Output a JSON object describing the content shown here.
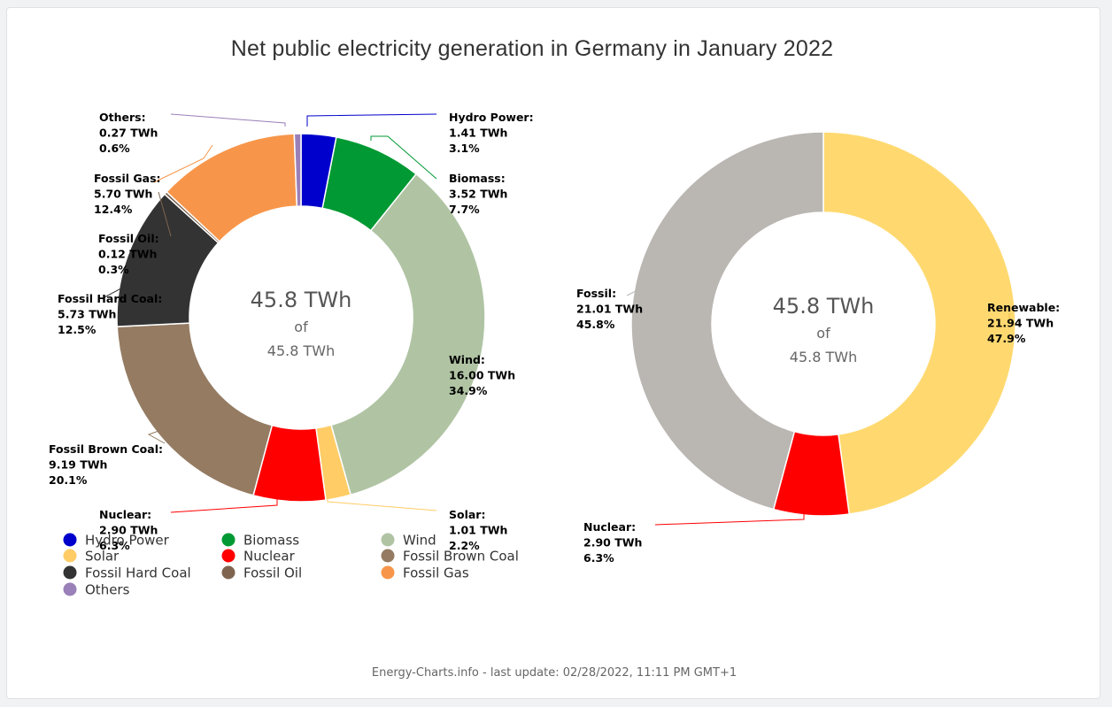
{
  "title": "Net public electricity generation in Germany in January 2022",
  "footer": "Energy-Charts.info - last update: 02/28/2022, 11:11 PM GMT+1",
  "chart_data": [
    {
      "type": "pie",
      "variant": "donut",
      "center": {
        "value": "45.8 TWh",
        "of": "of",
        "total": "45.8 TWh"
      },
      "unit": "TWh",
      "slices": [
        {
          "name": "Hydro Power",
          "value": 1.41,
          "value_label": "1.41 TWh",
          "percent": 3.1,
          "percent_label": "3.1%",
          "color": "#0000cc"
        },
        {
          "name": "Biomass",
          "value": 3.52,
          "value_label": "3.52 TWh",
          "percent": 7.7,
          "percent_label": "7.7%",
          "color": "#009933"
        },
        {
          "name": "Wind",
          "value": 16.0,
          "value_label": "16.00 TWh",
          "percent": 34.9,
          "percent_label": "34.9%",
          "color": "#b0c4a4"
        },
        {
          "name": "Solar",
          "value": 1.01,
          "value_label": "1.01 TWh",
          "percent": 2.2,
          "percent_label": "2.2%",
          "color": "#ffcc66"
        },
        {
          "name": "Nuclear",
          "value": 2.9,
          "value_label": "2.90 TWh",
          "percent": 6.3,
          "percent_label": "6.3%",
          "color": "#ff0000"
        },
        {
          "name": "Fossil Brown Coal",
          "value": 9.19,
          "value_label": "9.19 TWh",
          "percent": 20.1,
          "percent_label": "20.1%",
          "color": "#947b62"
        },
        {
          "name": "Fossil Hard Coal",
          "value": 5.73,
          "value_label": "5.73 TWh",
          "percent": 12.5,
          "percent_label": "12.5%",
          "color": "#333333"
        },
        {
          "name": "Fossil Oil",
          "value": 0.12,
          "value_label": "0.12 TWh",
          "percent": 0.3,
          "percent_label": "0.3%",
          "color": "#7f6550"
        },
        {
          "name": "Fossil Gas",
          "value": 5.7,
          "value_label": "5.70 TWh",
          "percent": 12.4,
          "percent_label": "12.4%",
          "color": "#f7964a"
        },
        {
          "name": "Others",
          "value": 0.27,
          "value_label": "0.27 TWh",
          "percent": 0.6,
          "percent_label": "0.6%",
          "color": "#9a80b8"
        }
      ],
      "legend": [
        "Hydro Power",
        "Biomass",
        "Wind",
        "Solar",
        "Nuclear",
        "Fossil Brown Coal",
        "Fossil Hard Coal",
        "Fossil Oil",
        "Fossil Gas",
        "Others"
      ]
    },
    {
      "type": "pie",
      "variant": "donut",
      "center": {
        "value": "45.8 TWh",
        "of": "of",
        "total": "45.8 TWh"
      },
      "unit": "TWh",
      "slices": [
        {
          "name": "Renewable",
          "value": 21.94,
          "value_label": "21.94 TWh",
          "percent": 47.9,
          "percent_label": "47.9%",
          "color": "#ffd970"
        },
        {
          "name": "Nuclear",
          "value": 2.9,
          "value_label": "2.90 TWh",
          "percent": 6.3,
          "percent_label": "6.3%",
          "color": "#ff0000"
        },
        {
          "name": "Fossil",
          "value": 21.01,
          "value_label": "21.01 TWh",
          "percent": 45.8,
          "percent_label": "45.8%",
          "color": "#bab6b2"
        }
      ]
    }
  ]
}
